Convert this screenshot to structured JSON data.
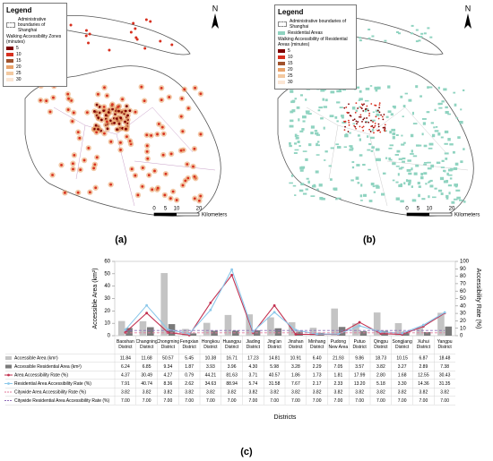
{
  "panels": [
    {
      "label": "(a)",
      "north": "N",
      "scale": [
        0,
        5,
        10,
        20
      ],
      "scale_unit": "Kilometers",
      "legend": {
        "title": "Legend",
        "boundary": "Administrative boundaries of Shanghai",
        "zones_title": "Walking Accessibility Zones (minutes)",
        "zones": [
          5,
          10,
          15,
          20,
          25,
          30
        ],
        "zone_colors": [
          "#7f0000",
          "#d7301f",
          "#a0522d",
          "#e9a36b",
          "#f3c9a0",
          "#fbe6d4"
        ]
      }
    },
    {
      "label": "(b)",
      "north": "N",
      "scale": [
        0,
        5,
        10,
        20
      ],
      "scale_unit": "Kilometers",
      "legend": {
        "title": "Legend",
        "boundary": "Administrative boundaries of Shanghai",
        "residential": "Residential Areas",
        "residential_color": "#8fd3c0",
        "zones_title": "Walking Accessibility of Residential Areas (minutes)",
        "zones": [
          5,
          10,
          15,
          20,
          25,
          30
        ],
        "zone_colors": [
          "#7f0000",
          "#d7301f",
          "#a0522d",
          "#e9a36b",
          "#f3c9a0",
          "#fbe6d4"
        ]
      }
    }
  ],
  "chart_data": {
    "type": "combo",
    "label": "(c)",
    "x_label": "Districts",
    "y_label": "Accessible Area (km²)",
    "y2_label": "Accessibility Rate (%)",
    "categories": [
      "Baoshan District",
      "Changning District",
      "Chongming District",
      "Fengxian District",
      "Hongkou District",
      "Huangpu District",
      "Jiading District",
      "Jing'an District",
      "Jinshan District",
      "Minhang District",
      "Pudong New Area",
      "Putuo District",
      "Qingpu District",
      "Songjiang District",
      "Xuhui District",
      "Yangpu District"
    ],
    "ylim": [
      0,
      60
    ],
    "yticks": [
      0,
      10,
      20,
      30,
      40,
      50,
      60
    ],
    "y2lim": [
      0,
      100
    ],
    "y2ticks": [
      0,
      10,
      20,
      30,
      40,
      50,
      60,
      70,
      80,
      90,
      100
    ],
    "series": [
      {
        "name": "Accessible Area (km²)",
        "mark": "bar",
        "color": "#c4c4c4",
        "values": [
          11.84,
          11.68,
          50.57,
          5.45,
          10.38,
          16.71,
          17.23,
          14.81,
          10.91,
          6.4,
          21.93,
          9.86,
          18.73,
          10.15,
          6.87,
          18.48
        ],
        "value_labels": [
          "11.84",
          "11.68",
          "50.57",
          "5.45",
          "10.38",
          "16.71",
          "17.23",
          "14.81",
          "10.91",
          "6.40",
          "21.93",
          "9.86",
          "18.73",
          "10.15",
          "6.87",
          "18.48"
        ]
      },
      {
        "name": "Accessible Residential Area (km²)",
        "mark": "bar",
        "color": "#7a7a7a",
        "values": [
          6.24,
          6.85,
          9.34,
          1.87,
          3.93,
          3.96,
          4.3,
          5.98,
          3.28,
          2.29,
          7.05,
          3.57,
          3.82,
          3.27,
          2.89,
          7.38
        ],
        "value_labels": [
          "6.24",
          "6.85",
          "9.34",
          "1.87",
          "3.93",
          "3.96",
          "4.30",
          "5.98",
          "3.28",
          "2.29",
          "7.05",
          "3.57",
          "3.82",
          "3.27",
          "2.89",
          "7.38"
        ]
      },
      {
        "name": "Area Accessibility Rate (%)",
        "mark": "line",
        "axis": "y2",
        "color": "#c2304f",
        "values": [
          4.37,
          30.49,
          4.27,
          0.79,
          44.21,
          81.63,
          3.71,
          40.57,
          1.86,
          1.73,
          1.81,
          17.99,
          2.8,
          1.68,
          12.55,
          30.43
        ],
        "value_labels": [
          "4.37",
          "30.49",
          "4.27",
          "0.79",
          "44.21",
          "81.63",
          "3.71",
          "40.57",
          "1.86",
          "1.73",
          "1.81",
          "17.99",
          "2.80",
          "1.68",
          "12.55",
          "30.43"
        ]
      },
      {
        "name": "Residential Area Accessibility Rate (%)",
        "mark": "line",
        "axis": "y2",
        "color": "#8cc8ea",
        "values": [
          7.91,
          40.74,
          8.36,
          2.62,
          34.63,
          88.94,
          5.74,
          31.58,
          7.67,
          2.17,
          2.33,
          13.2,
          5.18,
          3.3,
          14.36,
          31.35
        ],
        "value_labels": [
          "7.91",
          "40.74",
          "8.36",
          "2.62",
          "34.63",
          "88.94",
          "5.74",
          "31.58",
          "7.67",
          "2.17",
          "2.33",
          "13.20",
          "5.18",
          "3.30",
          "14.36",
          "31.35"
        ]
      },
      {
        "name": "Citywide Area Accessibility Rate (%)",
        "mark": "dashed",
        "axis": "y2",
        "color": "#e07a9a",
        "values": [
          3.82,
          3.82,
          3.82,
          3.82,
          3.82,
          3.82,
          3.82,
          3.82,
          3.82,
          3.82,
          3.82,
          3.82,
          3.82,
          3.82,
          3.82,
          3.82
        ],
        "value_labels": [
          "3.82",
          "3.82",
          "3.82",
          "3.82",
          "3.82",
          "3.82",
          "3.82",
          "3.82",
          "3.82",
          "3.82",
          "3.82",
          "3.82",
          "3.82",
          "3.82",
          "3.82",
          "3.82"
        ]
      },
      {
        "name": "Citywide Residential Area Accessibility Rate (%)",
        "mark": "dashed",
        "axis": "y2",
        "color": "#8e6bb8",
        "values": [
          7,
          7,
          7,
          7,
          7,
          7,
          7,
          7,
          7,
          7,
          7,
          7,
          7,
          7,
          7,
          7
        ],
        "value_labels": [
          "7.00",
          "7.00",
          "7.00",
          "7.00",
          "7.00",
          "7.00",
          "7.00",
          "7.00",
          "7.00",
          "7.00",
          "7.00",
          "7.00",
          "7.00",
          "7.00",
          "7.00",
          "7.00"
        ]
      }
    ]
  }
}
